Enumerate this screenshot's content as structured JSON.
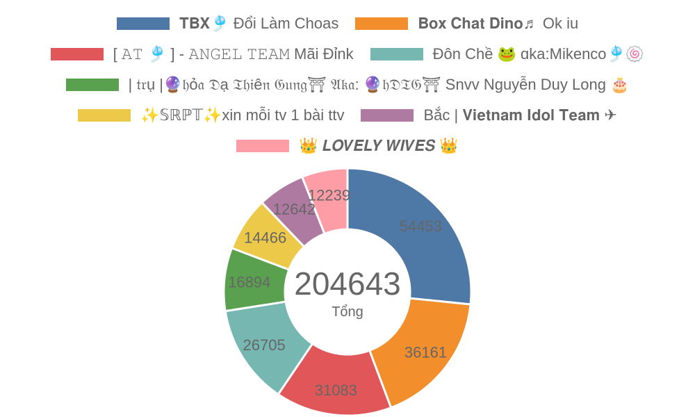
{
  "chart_data": {
    "type": "pie",
    "donut": true,
    "legend_position": "top",
    "center_total": "204643",
    "center_label": "Tổng",
    "slices": [
      {
        "name": "𝐓𝐁𝐗🎐 Đổi Làm Choas",
        "value": 54453,
        "color": "#4e79a7"
      },
      {
        "name": "𝐁𝐨𝐱 𝐂𝐡𝐚𝐭 𝐃𝐢𝐧𝐨♬ Ok iu",
        "value": 36161,
        "color": "#f28e2b"
      },
      {
        "name": "[ 𝙰𝚃 🎐 ] - 𝙰𝙽𝙶𝙴𝙻 𝚃𝙴𝙰𝙼 Mãi Đỉnk",
        "value": 31083,
        "color": "#e15759"
      },
      {
        "name": "Đôn Chề 🐸 ɑka:Mikenco🎐🍥",
        "value": 26705,
        "color": "#76b7b2"
      },
      {
        "name": "| 𝔱𝔯ụ |🔮𝔥ỏ𝔞 𝔇ạ 𝔗𝔥𝔦ê𝔫 𝔊𝔲𝔫𝔤⛩ 𝔄𝔨𝔞: 🔮𝔥𝔇𝔗𝔊⛩ Snvv Nguyễn Duy Long 🎂",
        "value": 16894,
        "color": "#59a14f"
      },
      {
        "name": "✨𝕊ℝℙ𝕋✨xin mỗi tv 1 bài ttv",
        "value": 14466,
        "color": "#edc949"
      },
      {
        "name": "Bắc | 𝐕𝐢𝐞𝐭𝐧𝐚𝐦 𝐈𝐝𝐨𝐥 𝐓𝐞𝐚𝐦 ✈",
        "value": 12642,
        "color": "#af7aa1"
      },
      {
        "name": "👑 𝑳𝑶𝑽𝑬𝑳𝒀 𝑾𝑰𝑽𝑬𝑺 👑",
        "value": 12239,
        "color": "#ff9da7"
      }
    ]
  }
}
